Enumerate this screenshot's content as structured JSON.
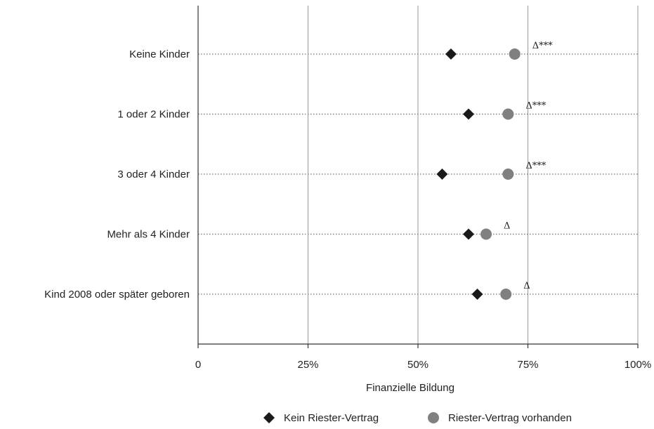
{
  "chart_data": {
    "type": "scatter",
    "title": "",
    "xlabel": "Finanzielle Bildung",
    "ylabel": "",
    "xlim": [
      0,
      100
    ],
    "x_ticks": [
      {
        "value": 0,
        "label": "0"
      },
      {
        "value": 25,
        "label": "25%"
      },
      {
        "value": 50,
        "label": "50%"
      },
      {
        "value": 75,
        "label": "75%"
      },
      {
        "value": 100,
        "label": "100%"
      }
    ],
    "grid": "vertical lines at 25%, 50%, 75%, 100%; dotted horizontal guide per category",
    "legend_position": "bottom",
    "categories": [
      "Keine Kinder",
      "1 oder 2 Kinder",
      "3 oder 4 Kinder",
      "Mehr als 4 Kinder",
      "Kind 2008 oder später geboren"
    ],
    "series": [
      {
        "name": "Kein Riester-Vertrag",
        "marker": "diamond",
        "color": "#1a1a1a",
        "values": [
          57.5,
          61.5,
          55.5,
          61.5,
          63.5
        ]
      },
      {
        "name": "Riester-Vertrag vorhanden",
        "marker": "circle",
        "color": "#808080",
        "values": [
          72,
          70.5,
          70.5,
          65.5,
          70
        ]
      }
    ],
    "annotations": [
      "Δ***",
      "Δ***",
      "Δ***",
      "Δ",
      "Δ"
    ]
  }
}
